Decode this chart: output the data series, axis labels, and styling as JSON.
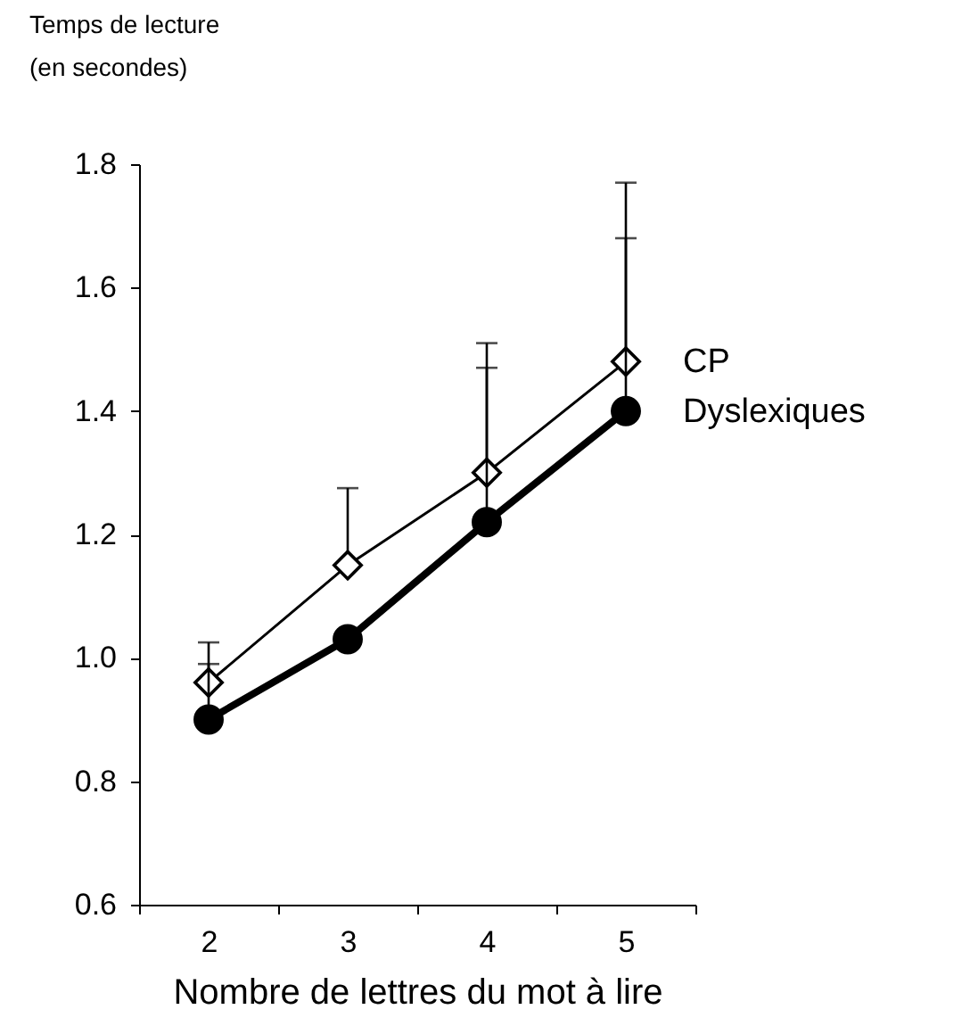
{
  "chart_data": {
    "type": "line",
    "xlabel": "Nombre de lettres du mot à lire",
    "ylabel": "Temps de lecture\n(en secondes)",
    "categories": [
      "2",
      "3",
      "4",
      "5"
    ],
    "series": [
      {
        "name": "CP",
        "color": "#000000",
        "marker": "diamond",
        "values": [
          0.96,
          1.15,
          1.3,
          1.48
        ],
        "errors": [
          [
            0.96,
            1.025
          ],
          [
            1.15,
            1.275
          ],
          [
            1.3,
            1.51
          ],
          [
            1.48,
            1.77
          ]
        ]
      },
      {
        "name": "Dyslexiques",
        "color": "#000000",
        "marker": "circle",
        "values": [
          0.9,
          1.03,
          1.22,
          1.4
        ],
        "errors": [
          [
            0.9,
            0.99
          ],
          null,
          [
            1.22,
            1.47
          ],
          [
            1.4,
            1.68
          ]
        ]
      }
    ],
    "ylim": [
      0.6,
      1.8
    ],
    "yticks": [
      0.6,
      0.8,
      {
        "value": 1.0,
        "label": "1.0"
      },
      1.2,
      1.4,
      1.6,
      1.8
    ],
    "grid": false,
    "legend": "right"
  }
}
